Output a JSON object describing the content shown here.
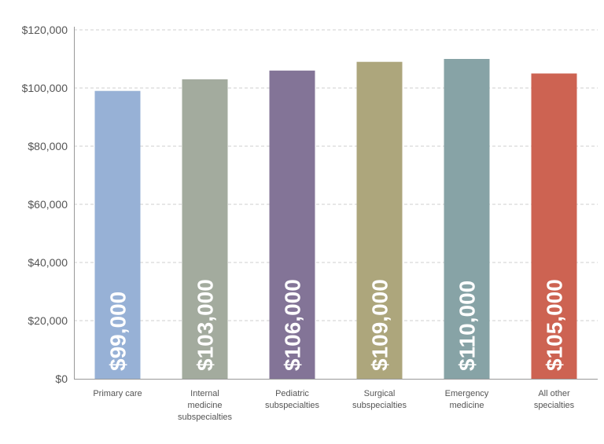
{
  "chart_data": {
    "type": "bar",
    "categories": [
      "Primary care",
      "Internal medicine subspecialties",
      "Pediatric subspecialties",
      "Surgical subspecialties",
      "Emergency medicine",
      "All other specialties"
    ],
    "category_lines": [
      [
        "Primary care"
      ],
      [
        "Internal",
        "medicine",
        "subspecialties"
      ],
      [
        "Pediatric",
        "subspecialties"
      ],
      [
        "Surgical",
        "subspecialties"
      ],
      [
        "Emergency",
        "medicine"
      ],
      [
        "All other",
        "specialties"
      ]
    ],
    "values": [
      99000,
      103000,
      106000,
      109000,
      110000,
      105000
    ],
    "data_labels": [
      "$99,000",
      "$103,000",
      "$106,000",
      "$109,000",
      "$110,000",
      "$105,000"
    ],
    "colors": [
      "#97b1d6",
      "#a3ab9e",
      "#837497",
      "#ada67c",
      "#87a3a6",
      "#cd6352"
    ],
    "ylim": [
      0,
      120000
    ],
    "yticks": [
      0,
      20000,
      40000,
      60000,
      80000,
      100000,
      120000
    ],
    "ytick_labels": [
      "$0",
      "$20,000",
      "$40,000",
      "$60,000",
      "$80,000",
      "$100,000",
      "$120,000"
    ],
    "grid": true,
    "title": "",
    "xlabel": "",
    "ylabel": ""
  }
}
